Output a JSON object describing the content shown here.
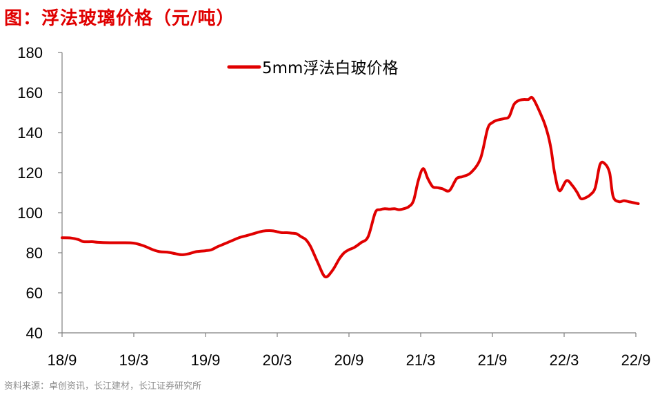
{
  "header": {
    "title": "图：浮法玻璃价格（元/吨）"
  },
  "footer": {
    "source": "资料来源：卓创资讯，长江建材，长江证券研究所"
  },
  "chart_data": {
    "type": "line",
    "title": "图：浮法玻璃价格（元/吨）",
    "xlabel": "",
    "ylabel": "",
    "ylim": [
      40,
      180
    ],
    "yticks": [
      40,
      60,
      80,
      100,
      120,
      140,
      160,
      180
    ],
    "xticks": [
      "18/9",
      "19/3",
      "19/9",
      "20/3",
      "20/9",
      "21/3",
      "21/9",
      "22/3",
      "22/9"
    ],
    "xlim": [
      0,
      48
    ],
    "legend": "top",
    "grid": false,
    "series": [
      {
        "name": "5mm浮法白玻价格",
        "color": "#e00000",
        "x": [
          0,
          0.8,
          1.4,
          1.8,
          2.5,
          3.0,
          4.0,
          5.0,
          6.0,
          6.8,
          7.6,
          8.2,
          8.8,
          9.5,
          10.0,
          10.6,
          11.2,
          12.0,
          12.5,
          13.0,
          13.6,
          14.2,
          14.8,
          15.4,
          16.0,
          16.8,
          17.5,
          18.0,
          18.4,
          18.8,
          19.2,
          19.6,
          20.0,
          20.4,
          20.8,
          21.4,
          22.0,
          22.6,
          23.2,
          23.6,
          24.0,
          24.4,
          25.0,
          25.6,
          26.2,
          26.6,
          27.0,
          27.4,
          27.8,
          28.2,
          28.6,
          29.0,
          29.4,
          29.8,
          30.2,
          30.6,
          31.0,
          31.4,
          31.8,
          32.4,
          33.0,
          33.5,
          34.2,
          35.0,
          35.6,
          36.0,
          36.3,
          36.6,
          37.0,
          37.4,
          37.8,
          38.2,
          38.6,
          39.0,
          39.4,
          40.2,
          40.6,
          40.9,
          41.2,
          41.6,
          42.2,
          42.7,
          43.1,
          43.4,
          43.8,
          44.2,
          44.6,
          45.0,
          45.4,
          45.8,
          46.1,
          46.6,
          47.0,
          47.4,
          47.8,
          48.2
        ],
        "values": [
          87.5,
          87.3,
          86.5,
          85.5,
          85.5,
          85.2,
          85.0,
          85.0,
          84.8,
          83.5,
          81.5,
          80.5,
          80.3,
          79.5,
          79.0,
          79.5,
          80.5,
          81.0,
          81.5,
          83.0,
          84.5,
          86.0,
          87.5,
          88.5,
          89.5,
          90.8,
          91.0,
          90.5,
          90.0,
          90.0,
          89.8,
          89.5,
          88.0,
          86.5,
          83.0,
          75.0,
          68.0,
          71.0,
          77.0,
          80.0,
          81.5,
          82.5,
          85.0,
          88.0,
          100.0,
          101.5,
          102.0,
          101.8,
          102.0,
          101.5,
          102.0,
          103.0,
          106.0,
          116.0,
          122.0,
          117.0,
          113.0,
          112.5,
          112.0,
          111.0,
          117.0,
          118.0,
          120.0,
          127.0,
          142.0,
          145.0,
          146.0,
          146.5,
          147.0,
          148.0,
          154.0,
          156.0,
          156.5,
          156.5,
          157.0,
          147.0,
          140.0,
          132.0,
          120.0,
          111.0,
          116.0,
          113.5,
          110.0,
          107.0,
          107.5,
          109.0,
          112.5,
          124.0,
          124.5,
          120.0,
          108.0,
          105.5,
          106.0,
          105.5,
          105.0,
          104.5
        ]
      }
    ]
  }
}
